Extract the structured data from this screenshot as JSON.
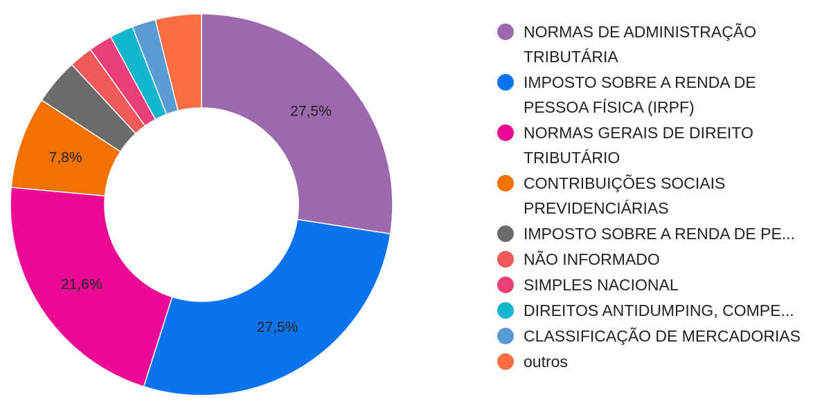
{
  "chart_data": {
    "type": "pie",
    "legend_position": "right",
    "slices": [
      {
        "label": "NORMAS DE ADMINISTRAÇÃO TRIBUTÁRIA",
        "value": 27.5,
        "display": "27,5%",
        "color": "#9c69ae"
      },
      {
        "label": "IMPOSTO SOBRE A RENDA DE PESSOA FÍSICA (IRPF)",
        "value": 27.5,
        "display": "27,5%",
        "color": "#0a73f0"
      },
      {
        "label": "NORMAS GERAIS DE DIREITO TRIBUTÁRIO",
        "value": 21.6,
        "display": "21,6%",
        "color": "#ec0a94"
      },
      {
        "label": "CONTRIBUIÇÕES SOCIAIS PREVIDENCIÁRIAS",
        "value": 7.8,
        "display": "7,8%",
        "color": "#f27100"
      },
      {
        "label": "IMPOSTO SOBRE A RENDA DE PE...",
        "value": 3.9,
        "display": "",
        "color": "#6b6b6b"
      },
      {
        "label": "NÃO INFORMADO",
        "value": 2.0,
        "display": "",
        "color": "#f05a5a"
      },
      {
        "label": "SIMPLES NACIONAL",
        "value": 2.0,
        "display": "",
        "color": "#ea3f7a"
      },
      {
        "label": "DIREITOS ANTIDUMPING, COMPE...",
        "value": 2.0,
        "display": "",
        "color": "#13b6cc"
      },
      {
        "label": "CLASSIFICAÇÃO DE MERCADORIAS",
        "value": 2.0,
        "display": "",
        "color": "#5b9bd5"
      },
      {
        "label": "outros",
        "value": 3.9,
        "display": "",
        "color": "#f96f43"
      }
    ]
  }
}
